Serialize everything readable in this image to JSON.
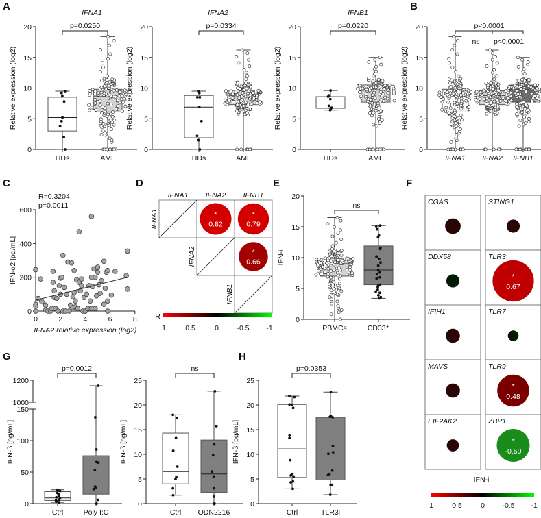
{
  "panel_labels": [
    "A",
    "B",
    "C",
    "D",
    "E",
    "F",
    "G",
    "H"
  ],
  "chart_data": [
    {
      "id": "A-IFNA1",
      "type": "box",
      "title": "IFNA1",
      "ylabel": "Relative expression (log2)",
      "ylim": [
        0,
        20
      ],
      "yticks": [
        0,
        5,
        10,
        15,
        20
      ],
      "groups": [
        {
          "label": "HDs",
          "fill": "#ffffff",
          "stats": {
            "min": 0,
            "q1": 3,
            "median": 5.2,
            "q3": 8.5,
            "max": 9.5
          },
          "points": [
            9.5,
            9.2,
            8.7,
            7.8,
            5.2,
            4.6,
            3.8,
            2,
            0
          ]
        },
        {
          "label": "AML",
          "fill": "#d3d3d3",
          "stats": {
            "min": 0,
            "min_nonzero": 1.2,
            "q1": 6.1,
            "median": 8.6,
            "q3": 9.8,
            "max": 18.4
          },
          "n": 150,
          "n_zero": 12
        }
      ],
      "comparisons": [
        {
          "groups": [
            0,
            1
          ],
          "label": "p=0.0250"
        }
      ]
    },
    {
      "id": "A-IFNA2",
      "type": "box",
      "title": "IFNA2",
      "ylabel": "Relative expression (log2)",
      "ylim": [
        0,
        20
      ],
      "yticks": [
        0,
        5,
        10,
        15,
        20
      ],
      "groups": [
        {
          "label": "HDs",
          "fill": "#ffffff",
          "stats": {
            "min": 0,
            "q1": 1.9,
            "median": 6.9,
            "q3": 8.8,
            "max": 9.5
          },
          "points": [
            9.5,
            9.2,
            8.5,
            8.5,
            6.9,
            4.6,
            2.2,
            1.5,
            0
          ]
        },
        {
          "label": "AML",
          "fill": "#d3d3d3",
          "stats": {
            "min": 0,
            "min_nonzero": 5.6,
            "q1": 7.3,
            "median": 8.8,
            "q3": 9.6,
            "max": 16.2
          },
          "n": 150,
          "n_zero": 6
        }
      ],
      "comparisons": [
        {
          "groups": [
            0,
            1
          ],
          "label": "p=0.0334"
        }
      ]
    },
    {
      "id": "A-IFNB1",
      "type": "box",
      "title": "IFNB1",
      "ylabel": "Relative expression (log2)",
      "ylim": [
        0,
        20
      ],
      "yticks": [
        0,
        5,
        10,
        15,
        20
      ],
      "groups": [
        {
          "label": "HDs",
          "fill": "#ffffff",
          "stats": {
            "min": 6.4,
            "q1": 6.7,
            "median": 7.1,
            "q3": 8.6,
            "max": 9.6
          },
          "points": [
            9.6,
            8.8,
            8.6,
            8.2,
            7.1,
            6.8,
            6.6,
            6.4
          ]
        },
        {
          "label": "AML",
          "fill": "#d3d3d3",
          "stats": {
            "min": 0,
            "min_nonzero": 3.8,
            "q1": 7.7,
            "median": 9.7,
            "q3": 10.5,
            "max": 15
          },
          "n": 150,
          "n_zero": 14
        }
      ],
      "comparisons": [
        {
          "groups": [
            0,
            1
          ],
          "label": "p=0.0220"
        }
      ]
    },
    {
      "id": "B",
      "type": "box",
      "title": "",
      "ylabel": "Relative expression (log2)",
      "ylim": [
        0,
        20
      ],
      "yticks": [
        0,
        5,
        10,
        15,
        20
      ],
      "xlabels_italic": true,
      "groups": [
        {
          "label": "IFNA1",
          "fill": "#ffffff",
          "stats": {
            "min": 0,
            "min_nonzero": 1.2,
            "q1": 6.1,
            "median": 8.6,
            "q3": 9.8,
            "max": 18.4
          },
          "n": 150,
          "n_zero": 12
        },
        {
          "label": "IFNA2",
          "fill": "#d3d3d3",
          "stats": {
            "min": 0,
            "min_nonzero": 5.6,
            "q1": 7.3,
            "median": 8.8,
            "q3": 9.6,
            "max": 16.2
          },
          "n": 150,
          "n_zero": 6
        },
        {
          "label": "IFNB1",
          "fill": "#6e6e6e",
          "stats": {
            "min": 0,
            "min_nonzero": 3.8,
            "q1": 7.7,
            "median": 9.7,
            "q3": 10.5,
            "max": 15
          },
          "n": 150,
          "n_zero": 14
        }
      ],
      "comparisons": [
        {
          "groups": [
            0,
            2
          ],
          "label": "p<0.0001"
        },
        {
          "groups": [
            0,
            1
          ],
          "label": "ns"
        },
        {
          "groups": [
            1,
            2
          ],
          "label": "p<0.0001"
        }
      ]
    },
    {
      "id": "C",
      "type": "scatter",
      "xlabel": "IFNA2 relative expression (log2)",
      "ylabel": "IFN-α2 [pg/mL]",
      "xlim": [
        0,
        8
      ],
      "ylim": [
        0,
        600
      ],
      "xticks": [
        0,
        2,
        4,
        6,
        8
      ],
      "yticks": [
        0,
        200,
        400,
        600
      ],
      "stats": {
        "r": "R=0.3204",
        "p": "p=0.0011"
      },
      "fit": [
        [
          0,
          65
        ],
        [
          7.4,
          200
        ]
      ],
      "points": [
        [
          0,
          245
        ],
        [
          0,
          40
        ],
        [
          0,
          30
        ],
        [
          0,
          0
        ],
        [
          0.2,
          75
        ],
        [
          0.4,
          190
        ],
        [
          0.5,
          55
        ],
        [
          0.8,
          35
        ],
        [
          0.8,
          5
        ],
        [
          1,
          0
        ],
        [
          1.2,
          0
        ],
        [
          1.3,
          15
        ],
        [
          1.4,
          235
        ],
        [
          1.4,
          170
        ],
        [
          1.5,
          120
        ],
        [
          1.5,
          80
        ],
        [
          1.6,
          15
        ],
        [
          1.7,
          75
        ],
        [
          1.8,
          0
        ],
        [
          1.9,
          150
        ],
        [
          2,
          195
        ],
        [
          2,
          100
        ],
        [
          2.1,
          200
        ],
        [
          2.2,
          330
        ],
        [
          2.2,
          0
        ],
        [
          2.3,
          140
        ],
        [
          2.4,
          0
        ],
        [
          2.5,
          100
        ],
        [
          2.6,
          290
        ],
        [
          2.7,
          0
        ],
        [
          2.8,
          35
        ],
        [
          2.9,
          285
        ],
        [
          3,
          20
        ],
        [
          3,
          85
        ],
        [
          3.1,
          110
        ],
        [
          3.1,
          240
        ],
        [
          3.2,
          60
        ],
        [
          3.2,
          25
        ],
        [
          3.3,
          185
        ],
        [
          3.4,
          15
        ],
        [
          3.5,
          170
        ],
        [
          3.5,
          470
        ],
        [
          3.6,
          120
        ],
        [
          3.7,
          190
        ],
        [
          3.7,
          150
        ],
        [
          3.8,
          0
        ],
        [
          3.9,
          80
        ],
        [
          4,
          0
        ],
        [
          4.1,
          100
        ],
        [
          4.2,
          15
        ],
        [
          4.3,
          150
        ],
        [
          4.4,
          60
        ],
        [
          4.5,
          560
        ],
        [
          4.5,
          200
        ],
        [
          4.5,
          15
        ],
        [
          4.6,
          145
        ],
        [
          4.7,
          250
        ],
        [
          4.8,
          15
        ],
        [
          4.8,
          200
        ],
        [
          4.9,
          90
        ],
        [
          5,
          260
        ],
        [
          5,
          230
        ],
        [
          5.1,
          155
        ],
        [
          5.2,
          105
        ],
        [
          5.3,
          180
        ],
        [
          5.5,
          295
        ],
        [
          5.5,
          40
        ],
        [
          5.6,
          135
        ],
        [
          5.7,
          230
        ],
        [
          5.8,
          240
        ],
        [
          5.8,
          60
        ],
        [
          5.8,
          0
        ],
        [
          6.1,
          95
        ],
        [
          6.4,
          235
        ],
        [
          7.3,
          210
        ],
        [
          7.4,
          130
        ],
        [
          7.4,
          355
        ]
      ]
    },
    {
      "id": "D",
      "type": "heatmap",
      "labels": [
        "IFNA1",
        "IFNA2",
        "IFNB1"
      ],
      "cells": [
        {
          "row": 0,
          "col": 1,
          "value": 0.82,
          "label": "0.82",
          "sig": true
        },
        {
          "row": 0,
          "col": 2,
          "value": 0.79,
          "label": "0.79",
          "sig": true
        },
        {
          "row": 1,
          "col": 2,
          "value": 0.66,
          "label": "0.66",
          "sig": true
        }
      ],
      "colorbar": {
        "title": "R",
        "ticks": [
          "1",
          "0.5",
          "0",
          "-0.5",
          "-1"
        ],
        "colors": [
          "#ff0000",
          "#000000",
          "#00ff00"
        ]
      },
      "sig_mark": "*"
    },
    {
      "id": "E",
      "type": "box",
      "title": "",
      "ylabel": "IFN-i",
      "ylim": [
        0,
        20
      ],
      "yticks": [
        0,
        5,
        10,
        15,
        20
      ],
      "groups": [
        {
          "label": "PBMCs",
          "fill": "#d3d3d3",
          "stats": {
            "min": 0,
            "min_nonzero": 0.8,
            "q1": 7.0,
            "median": 9.0,
            "q3": 9.9,
            "max": 16.5
          },
          "n": 150,
          "n_zero": 1
        },
        {
          "label": "CD33⁺",
          "fill": "#808080",
          "stats": {
            "min": 3.4,
            "q1": 5.6,
            "median": 8.0,
            "q3": 11.9,
            "max": 15.2
          },
          "points": [
            15.2,
            15,
            14.6,
            13.6,
            13.3,
            11.6,
            11.4,
            10.2,
            10.1,
            9.8,
            9.2,
            8.7,
            8,
            7.6,
            7.3,
            6.8,
            6.6,
            5.6,
            5.4,
            5.2,
            4.8,
            4.5,
            4.3,
            3.9,
            3.6,
            3.4
          ]
        }
      ],
      "comparisons": [
        {
          "groups": [
            0,
            1
          ],
          "label": "ns"
        }
      ]
    },
    {
      "id": "F",
      "type": "heatmap",
      "xlabel": "IFN-i",
      "sig_mark": "*",
      "cells": [
        {
          "gene": "CGAS",
          "value": 0.15
        },
        {
          "gene": "STING1",
          "value": 0.1
        },
        {
          "gene": "DDX58",
          "value": -0.1
        },
        {
          "gene": "TLR3",
          "value": 0.67,
          "label": "0.67",
          "sig": true
        },
        {
          "gene": "IFIH1",
          "value": 0.12
        },
        {
          "gene": "TLR7",
          "value": -0.05
        },
        {
          "gene": "MAVS",
          "value": 0.12
        },
        {
          "gene": "TLR9",
          "value": 0.48,
          "label": "0.48",
          "sig": true
        },
        {
          "gene": "EIF2AK2",
          "value": 0.08
        },
        {
          "gene": "ZBP1",
          "value": -0.5,
          "label": "-0.50",
          "sig": true
        }
      ],
      "colorbar": {
        "ticks": [
          "1",
          "0.5",
          "0",
          "-0.5",
          "-1"
        ],
        "colors": [
          "#ff0000",
          "#000000",
          "#00ff00"
        ]
      }
    },
    {
      "id": "G-PolyIC",
      "type": "box",
      "title": "",
      "ylabel": "IFN-β [pg/mL]",
      "ylim": [
        0,
        1200
      ],
      "axis_break": [
        150,
        1000
      ],
      "yticks": [
        0,
        50,
        100,
        150,
        1000,
        1200
      ],
      "groups": [
        {
          "label": "Ctrl",
          "fill": "#ffffff",
          "stats": {
            "min": 2,
            "q1": 5,
            "median": 9,
            "q3": 19,
            "max": 22
          },
          "points": [
            22,
            21,
            21,
            20,
            17,
            15,
            12,
            10,
            8,
            6,
            5,
            4,
            3,
            2
          ]
        },
        {
          "label": "Poly I:C",
          "fill": "#808080",
          "stats": {
            "min": 0,
            "q1": 15,
            "median": 31,
            "q3": 76,
            "max": 1150
          },
          "points": [
            1150,
            137,
            86,
            66,
            65,
            53,
            27,
            25,
            23,
            6,
            0,
            0
          ]
        }
      ],
      "comparisons": [
        {
          "groups": [
            0,
            1
          ],
          "label": "p=0.0012"
        }
      ]
    },
    {
      "id": "G-ODN2216",
      "type": "box",
      "title": "",
      "ylabel": "IFN-β [pg/mL]",
      "ylim": [
        0,
        25
      ],
      "yticks": [
        0,
        5,
        10,
        15,
        20,
        25
      ],
      "groups": [
        {
          "label": "Ctrl",
          "fill": "#ffffff",
          "stats": {
            "min": 1.7,
            "q1": 4,
            "median": 6.5,
            "q3": 14.3,
            "max": 18
          },
          "points": [
            18,
            17.4,
            13.3,
            10.7,
            7.5,
            5.4,
            5,
            3.1,
            1.7
          ]
        },
        {
          "label": "ODN2216",
          "fill": "#808080",
          "stats": {
            "min": 0,
            "q1": 2.3,
            "median": 6,
            "q3": 12.9,
            "max": 22.8
          },
          "points": [
            22.8,
            15.7,
            12,
            9.8,
            6.5,
            5.5,
            3.1,
            1.4,
            0,
            0
          ]
        }
      ],
      "comparisons": [
        {
          "groups": [
            0,
            1
          ],
          "label": "ns"
        }
      ]
    },
    {
      "id": "H",
      "type": "box",
      "title": "",
      "ylabel": "IFN-β [pg/mL]",
      "ylim": [
        0,
        25
      ],
      "yticks": [
        0,
        5,
        10,
        15,
        20,
        25
      ],
      "groups": [
        {
          "label": "Ctrl",
          "fill": "#ffffff",
          "stats": {
            "min": 3,
            "q1": 5.3,
            "median": 11.1,
            "q3": 20.1,
            "max": 21.8
          },
          "points": [
            21.8,
            21.6,
            20.1,
            20,
            19.4,
            13.8,
            13.3,
            8.8,
            5.7,
            5.5,
            6,
            4.5,
            4.3,
            3
          ]
        },
        {
          "label": "TLR3i",
          "fill": "#808080",
          "stats": {
            "min": 1.8,
            "q1": 4.8,
            "median": 8.4,
            "q3": 17.5,
            "max": 22.6
          },
          "points": [
            22.6,
            17.8,
            17.6,
            17.5,
            11.7,
            10.4,
            10.1,
            6.7,
            6,
            5.8,
            3.8,
            3.8,
            1.8
          ]
        }
      ],
      "comparisons": [
        {
          "groups": [
            0,
            1
          ],
          "label": "p=0.0353"
        }
      ]
    }
  ]
}
